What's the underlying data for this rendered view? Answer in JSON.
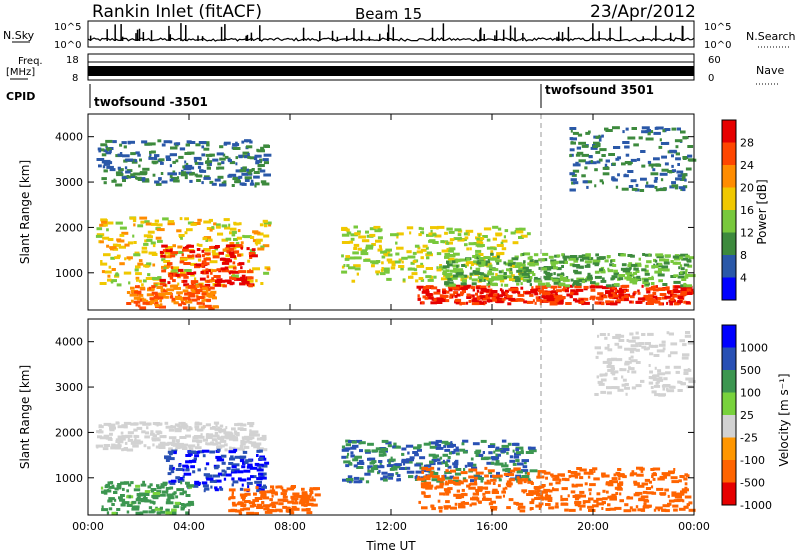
{
  "header": {
    "station": "Rankin Inlet (fitACF)",
    "beam": "Beam 15",
    "date": "23/Apr/2012"
  },
  "strip_labels": {
    "nsky": "N.Sky",
    "nsearch": "N.Search",
    "freq_line1": "Freq.",
    "freq_line2": "[MHz]",
    "nave": "Nave",
    "cpid": "CPID",
    "nsky_ticks": [
      "10^5",
      "10^0"
    ],
    "nsearch_ticks": [
      "10^5",
      "10^0"
    ],
    "freq_ticks": [
      "18",
      "8"
    ],
    "nave_ticks": [
      "60",
      "0"
    ]
  },
  "cpid_segments": [
    {
      "label": "twofsound -3501"
    },
    {
      "label": "twofsound 3501"
    }
  ],
  "colors": {
    "power": [
      "#0000ff",
      "#2a58a8",
      "#3d8a3d",
      "#78c83c",
      "#f0c800",
      "#ff8c00",
      "#ff4600",
      "#e60000"
    ],
    "velocity": [
      "#e60000",
      "#ff6400",
      "#ff9600",
      "#d2d2d2",
      "#78d23c",
      "#3c9650",
      "#2850b4",
      "#0000ff"
    ]
  },
  "chart_data": [
    {
      "type": "heatmap",
      "title": "",
      "xlabel": "",
      "ylabel": "Slant Range [km]",
      "xlim": [
        "00:00",
        "00:00"
      ],
      "ylim": [
        180,
        4500
      ],
      "x_ticks": [
        "00:00",
        "04:00",
        "08:00",
        "12:00",
        "16:00",
        "20:00",
        "00:00"
      ],
      "y_ticks": [
        "1000",
        "2000",
        "3000",
        "4000"
      ],
      "colorbar": {
        "label": "Power [dB]",
        "ticks": [
          "28",
          "24",
          "20",
          "16",
          "12",
          "8",
          "4"
        ],
        "range": [
          0,
          32
        ]
      },
      "regions": [
        {
          "t_start": 0.3,
          "t_end": 7.2,
          "r_start": 700,
          "r_end": 2200,
          "value": 18
        },
        {
          "t_start": 2.8,
          "t_end": 6.5,
          "r_start": 700,
          "r_end": 1600,
          "value": 28
        },
        {
          "t_start": 1.5,
          "t_end": 5.0,
          "r_start": 200,
          "r_end": 700,
          "value": 24
        },
        {
          "t_start": 0.3,
          "t_end": 7.0,
          "r_start": 2900,
          "r_end": 3900,
          "value": 8
        },
        {
          "t_start": 10.0,
          "t_end": 17.5,
          "r_start": 800,
          "r_end": 2000,
          "value": 16
        },
        {
          "t_start": 13.0,
          "t_end": 23.8,
          "r_start": 300,
          "r_end": 700,
          "value": 28
        },
        {
          "t_start": 14.0,
          "t_end": 23.8,
          "r_start": 700,
          "r_end": 1400,
          "value": 12
        },
        {
          "t_start": 19.0,
          "t_end": 23.8,
          "r_start": 2800,
          "r_end": 4200,
          "value": 8
        }
      ]
    },
    {
      "type": "heatmap",
      "title": "",
      "xlabel": "Time UT",
      "ylabel": "Slant Range [km]",
      "xlim": [
        "00:00",
        "00:00"
      ],
      "ylim": [
        180,
        4500
      ],
      "x_ticks": [
        "00:00",
        "04:00",
        "08:00",
        "12:00",
        "16:00",
        "20:00",
        "00:00"
      ],
      "y_ticks": [
        "1000",
        "2000",
        "3000",
        "4000"
      ],
      "colorbar": {
        "label": "Velocity [m s⁻¹]",
        "ticks": [
          "-1000",
          "-500",
          "-100",
          "-25",
          "25",
          "100",
          "500",
          "1000"
        ],
        "range": [
          -1000,
          1000
        ]
      },
      "regions": [
        {
          "t_start": 0.3,
          "t_end": 7.0,
          "r_start": 1600,
          "r_end": 2200,
          "value": 0
        },
        {
          "t_start": 3.0,
          "t_end": 7.0,
          "r_start": 700,
          "r_end": 1600,
          "value": 1000
        },
        {
          "t_start": 0.5,
          "t_end": 4.0,
          "r_start": 200,
          "r_end": 900,
          "value": 150
        },
        {
          "t_start": 5.5,
          "t_end": 9.0,
          "r_start": 200,
          "r_end": 800,
          "value": -300
        },
        {
          "t_start": 10.0,
          "t_end": 17.5,
          "r_start": 900,
          "r_end": 1800,
          "value": 500
        },
        {
          "t_start": 13.0,
          "t_end": 23.8,
          "r_start": 250,
          "r_end": 1200,
          "value": -300
        },
        {
          "t_start": 20.0,
          "t_end": 23.8,
          "r_start": 2800,
          "r_end": 4200,
          "value": 0
        }
      ]
    }
  ]
}
